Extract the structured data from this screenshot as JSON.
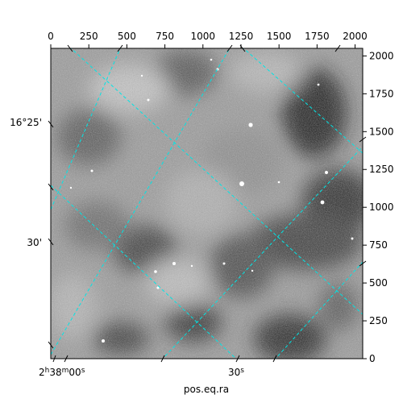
{
  "figure": {
    "xlabel": "pos.eq.ra",
    "top_ticks": [
      "0",
      "250",
      "500",
      "750",
      "1000",
      "1250",
      "1500",
      "1750",
      "2000"
    ],
    "right_ticks": [
      "0",
      "250",
      "500",
      "750",
      "1000",
      "1250",
      "1500",
      "1750",
      "2000"
    ],
    "bottom_wcs_labels": [
      {
        "h": "2",
        "hs": "h",
        "m": "38",
        "ms": "m",
        "s": "00",
        "ss": "s"
      },
      {
        "s": "30",
        "ss": "s"
      }
    ],
    "left_wcs_labels": [
      "16°25'",
      "30'"
    ],
    "grid_color": "#00e5e5",
    "image_colormap": "gray"
  },
  "chart_data": {
    "type": "heatmap",
    "title": "",
    "xlabel": "pos.eq.ra",
    "ylabel": "",
    "pixel_axis_x": {
      "range": [
        0,
        2050
      ],
      "ticks": [
        0,
        250,
        500,
        750,
        1000,
        1250,
        1500,
        1750,
        2000
      ]
    },
    "pixel_axis_y": {
      "range": [
        0,
        2050
      ],
      "ticks": [
        0,
        250,
        500,
        750,
        1000,
        1250,
        1500,
        1750,
        2000
      ]
    },
    "ra_ticks": [
      "2h38m00s",
      "30s"
    ],
    "dec_ticks": [
      "16°25'",
      "30'"
    ],
    "grid": true
  }
}
